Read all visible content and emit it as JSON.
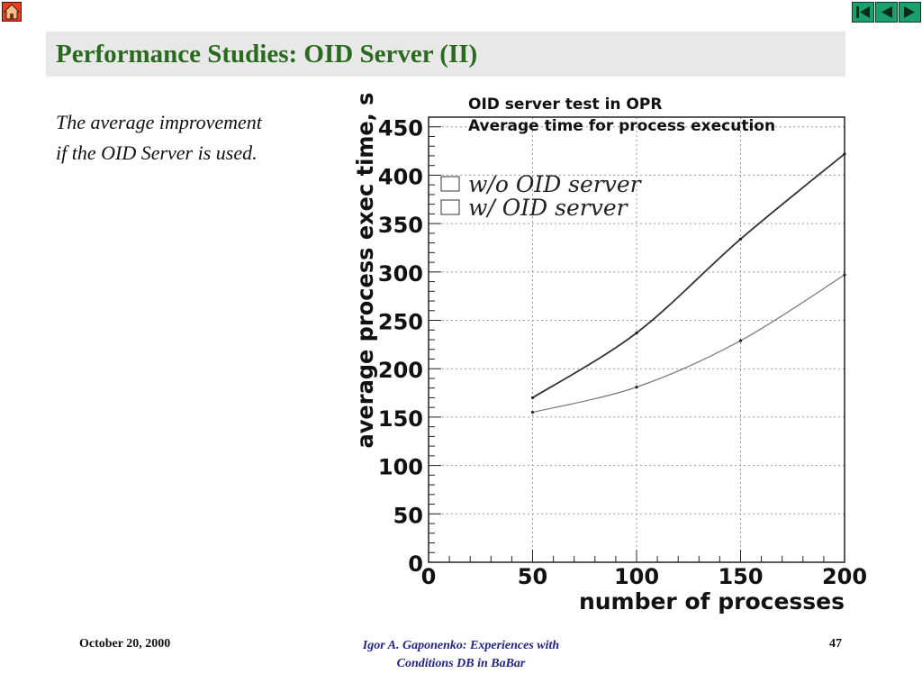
{
  "slide": {
    "title": "Performance Studies: OID Server (II)",
    "body_line1": "The average improvement",
    "body_line2": "if the OID Server is used."
  },
  "footer": {
    "date": "October 20, 2000",
    "center_line1": "Igor A. Gaponenko: Experiences with",
    "center_line2": "Conditions DB in BaBar",
    "page": "47"
  },
  "nav": {
    "home_icon": "home-icon",
    "buttons": [
      "first-slide-icon",
      "previous-slide-icon",
      "next-slide-icon"
    ]
  },
  "colors": {
    "title": "#2a6a1e",
    "title_bar_bg": "#e8e8e8",
    "footer_center": "#23238a",
    "home_button": "#e8401c",
    "nav_buttons": "#19a06e"
  },
  "chart_data": {
    "type": "line",
    "title": "OID server test in OPR",
    "subtitle": "Average time for process execution",
    "xlabel": "number of processes",
    "ylabel": "average process exec time, s",
    "xlim": [
      0,
      200
    ],
    "ylim": [
      0,
      460
    ],
    "xticks": [
      0,
      50,
      100,
      150,
      200
    ],
    "yticks": [
      0,
      50,
      100,
      150,
      200,
      250,
      300,
      350,
      400,
      450
    ],
    "grid": true,
    "legend_position": "top-left",
    "series": [
      {
        "name": "w/o OID server",
        "color": "#333333",
        "x": [
          50,
          100,
          150,
          200
        ],
        "y": [
          170,
          237,
          334,
          422
        ]
      },
      {
        "name": "w/ OID server",
        "color": "#777777",
        "x": [
          50,
          100,
          150,
          200
        ],
        "y": [
          155,
          181,
          229,
          297
        ]
      }
    ]
  }
}
